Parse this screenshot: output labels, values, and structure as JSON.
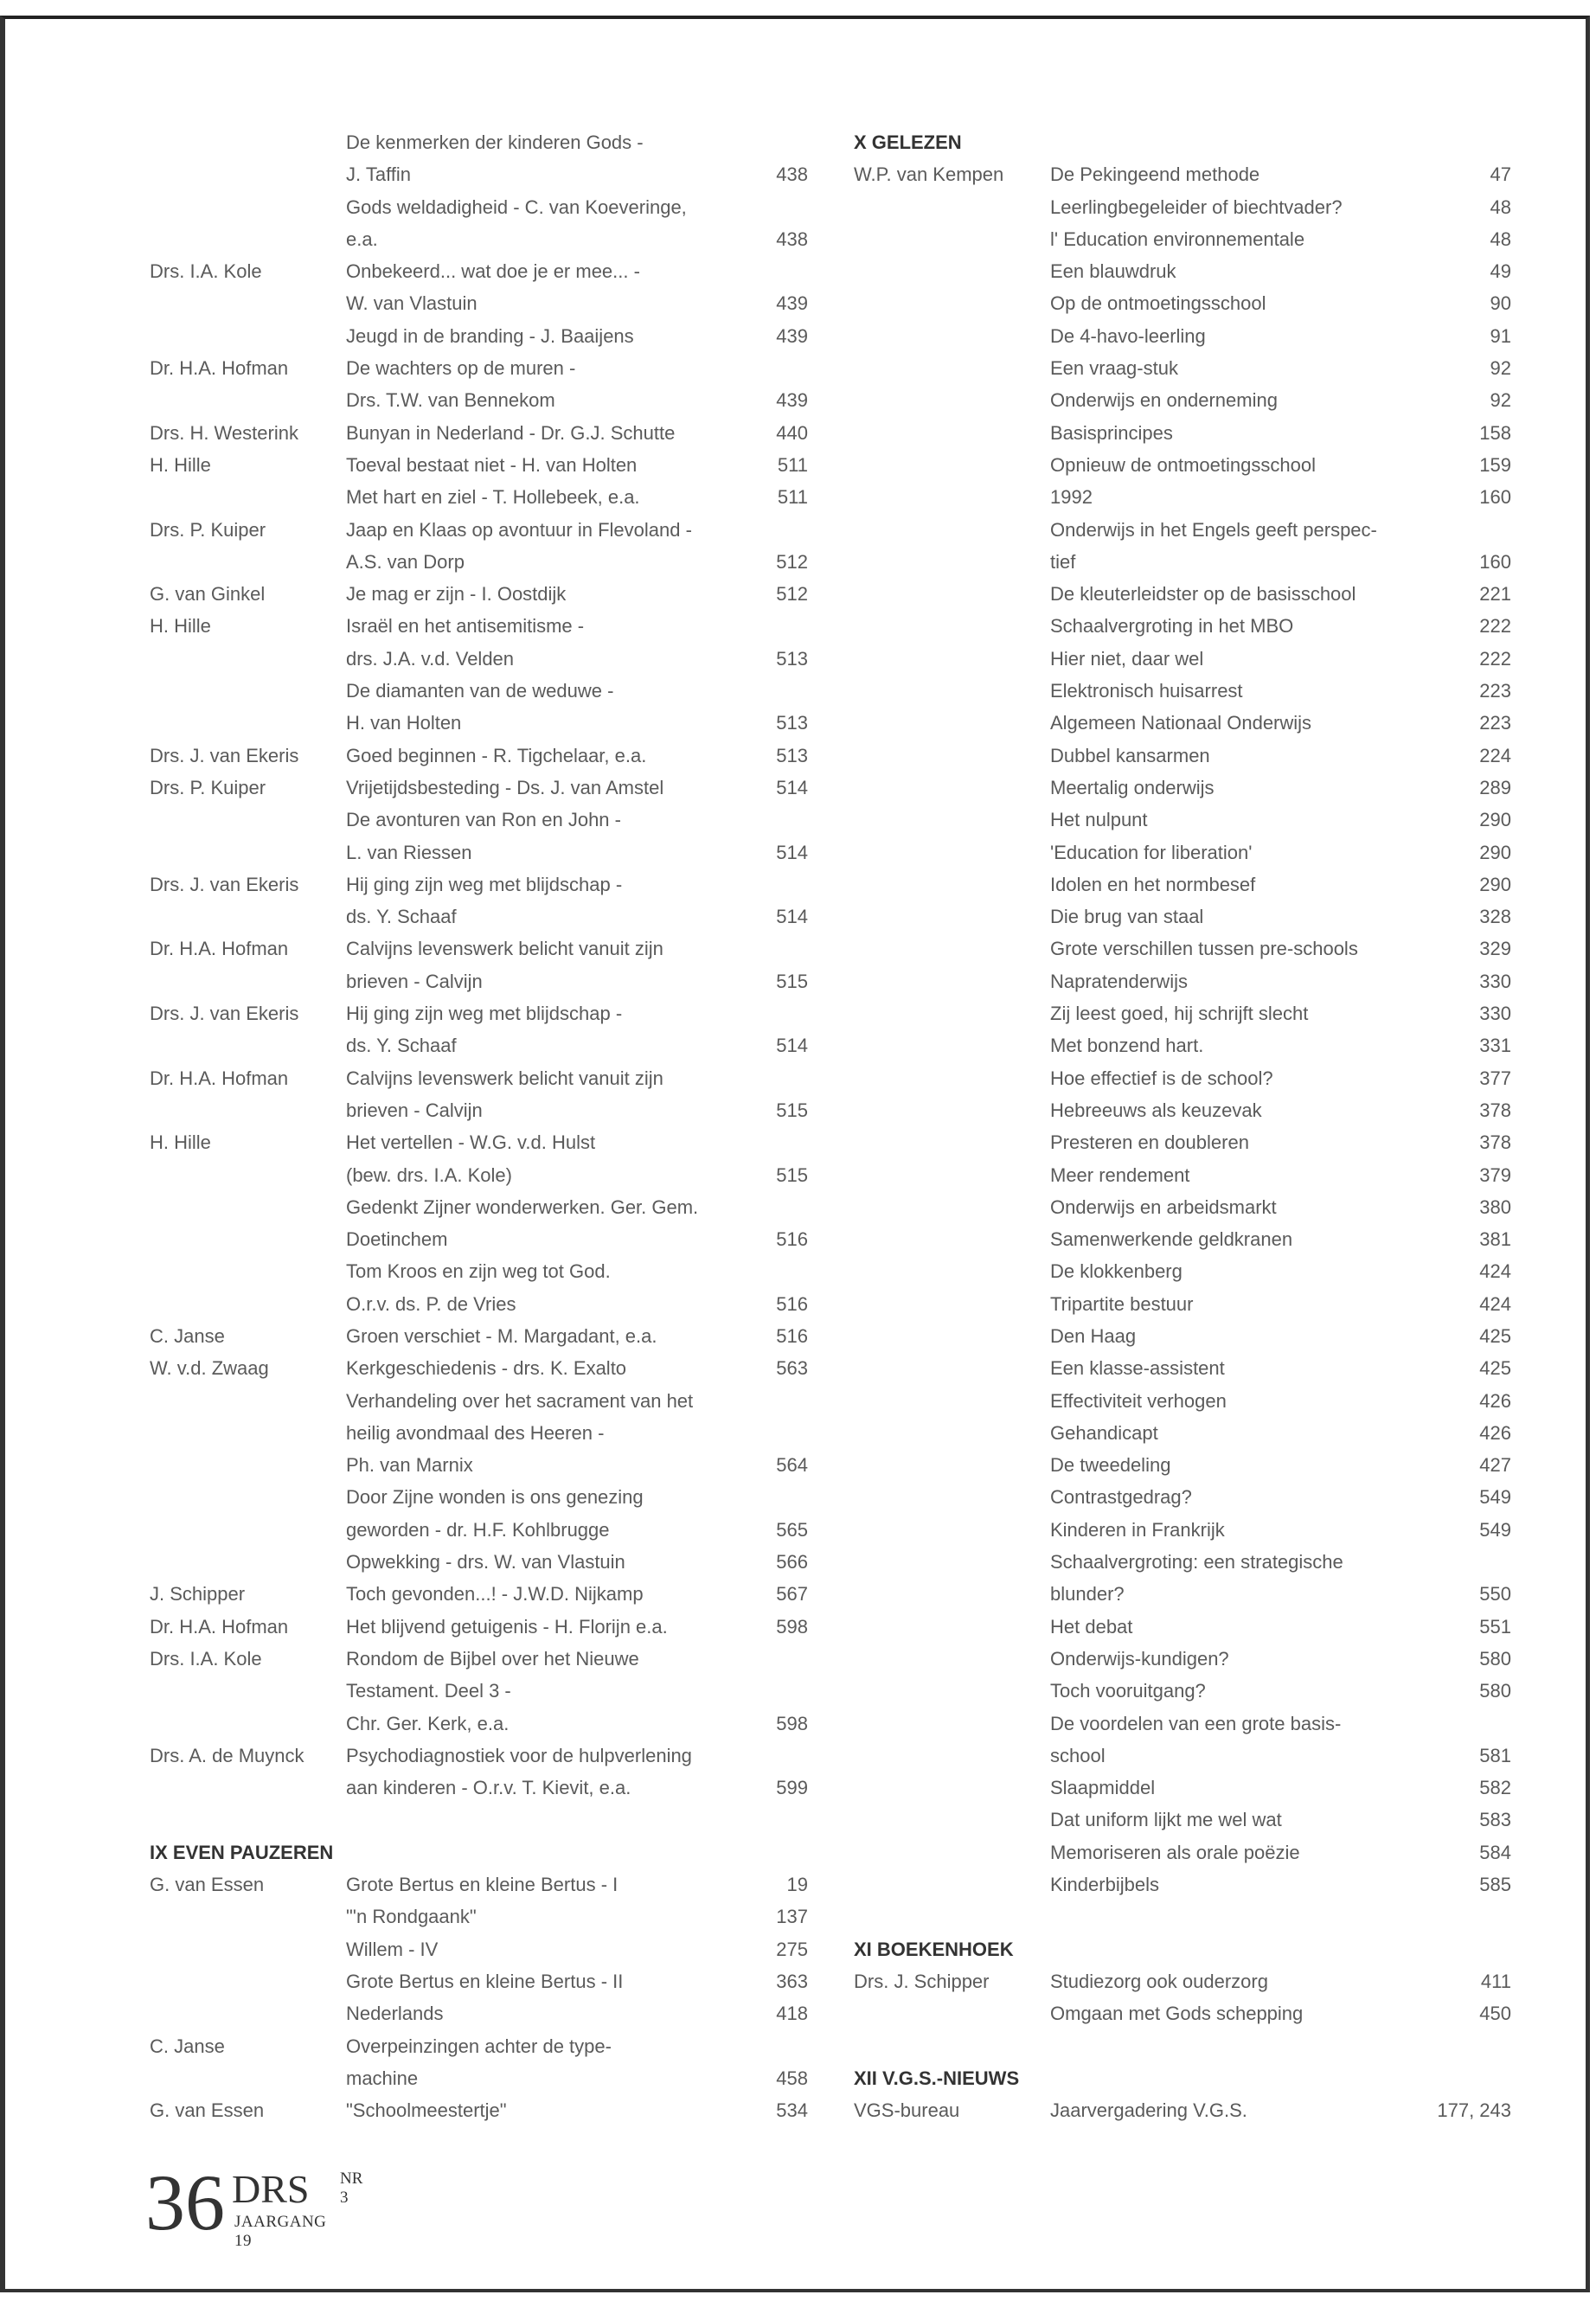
{
  "left_column": [
    {
      "t": "De kenmerken der kinderen Gods -"
    },
    {
      "t": "J. Taffin",
      "p": "438"
    },
    {
      "t": "Gods weldadigheid - C. van Koeveringe,"
    },
    {
      "t": "e.a.",
      "p": "438"
    },
    {
      "a": "Drs. I.A. Kole",
      "t": "Onbekeerd... wat doe je er mee... -"
    },
    {
      "t": "W. van Vlastuin",
      "p": "439"
    },
    {
      "t": "Jeugd in de branding - J. Baaijens",
      "p": "439"
    },
    {
      "a": "Dr. H.A. Hofman",
      "t": "De wachters op de muren -"
    },
    {
      "t": "Drs. T.W. van Bennekom",
      "p": "439"
    },
    {
      "a": "Drs. H. Westerink",
      "t": "Bunyan in Nederland - Dr. G.J. Schutte",
      "p": "440"
    },
    {
      "a": "H. Hille",
      "t": "Toeval bestaat niet - H. van Holten",
      "p": "511"
    },
    {
      "t": "Met hart en ziel - T. Hollebeek, e.a.",
      "p": "511"
    },
    {
      "a": "Drs. P. Kuiper",
      "t": "Jaap en Klaas op avontuur in Flevoland -"
    },
    {
      "t": "A.S. van Dorp",
      "p": "512"
    },
    {
      "a": "G. van Ginkel",
      "t": "Je mag er zijn - I. Oostdijk",
      "p": "512"
    },
    {
      "a": "H. Hille",
      "t": "Israël en het antisemitisme -"
    },
    {
      "t": "drs. J.A. v.d. Velden",
      "p": "513"
    },
    {
      "t": "De diamanten van de weduwe -"
    },
    {
      "t": "H. van Holten",
      "p": "513"
    },
    {
      "a": "Drs. J. van Ekeris",
      "t": "Goed beginnen - R. Tigchelaar, e.a.",
      "p": "513"
    },
    {
      "a": "Drs. P. Kuiper",
      "t": "Vrijetijdsbesteding - Ds. J. van Amstel",
      "p": "514"
    },
    {
      "t": "De avonturen van Ron en John -"
    },
    {
      "t": "L. van Riessen",
      "p": "514"
    },
    {
      "a": "Drs. J. van Ekeris",
      "t": "Hij ging zijn weg met blijdschap -"
    },
    {
      "t": "ds. Y. Schaaf",
      "p": "514"
    },
    {
      "a": "Dr. H.A. Hofman",
      "t": "Calvijns levenswerk belicht vanuit zijn"
    },
    {
      "t": "brieven - Calvijn",
      "p": "515"
    },
    {
      "a": "Drs. J. van Ekeris",
      "t": "Hij ging zijn weg met blijdschap -"
    },
    {
      "t": "ds. Y. Schaaf",
      "p": "514"
    },
    {
      "a": "Dr. H.A. Hofman",
      "t": "Calvijns levenswerk belicht vanuit zijn"
    },
    {
      "t": "brieven - Calvijn",
      "p": "515"
    },
    {
      "a": "H. Hille",
      "t": "Het vertellen - W.G. v.d. Hulst"
    },
    {
      "t": "(bew. drs. I.A. Kole)",
      "p": "515"
    },
    {
      "t": "Gedenkt Zijner wonderwerken. Ger. Gem."
    },
    {
      "t": "Doetinchem",
      "p": "516"
    },
    {
      "t": "Tom Kroos en zijn weg tot God."
    },
    {
      "t": "O.r.v. ds. P. de Vries",
      "p": "516"
    },
    {
      "a": "C. Janse",
      "t": "Groen verschiet - M. Margadant, e.a.",
      "p": "516"
    },
    {
      "a": "W. v.d. Zwaag",
      "t": "Kerkgeschiedenis - drs. K. Exalto",
      "p": "563"
    },
    {
      "t": "Verhandeling over het sacrament van het"
    },
    {
      "t": "heilig avondmaal des Heeren -"
    },
    {
      "t": "Ph. van Marnix",
      "p": "564"
    },
    {
      "t": "Door Zijne wonden is ons genezing"
    },
    {
      "t": "geworden - dr. H.F. Kohlbrugge",
      "p": "565"
    },
    {
      "t": "Opwekking - drs. W. van Vlastuin",
      "p": "566"
    },
    {
      "a": "J. Schipper",
      "t": "Toch gevonden...! - J.W.D. Nijkamp",
      "p": "567"
    },
    {
      "a": "Dr. H.A. Hofman",
      "t": "Het blijvend getuigenis - H. Florijn e.a.",
      "p": "598"
    },
    {
      "a": "Drs. I.A. Kole",
      "t": "Rondom de Bijbel over het Nieuwe"
    },
    {
      "t": "Testament. Deel 3 -"
    },
    {
      "t": "Chr. Ger. Kerk, e.a.",
      "p": "598"
    },
    {
      "a": "Drs. A. de Muynck",
      "t": "Psychodiagnostiek voor de hulpverlening"
    },
    {
      "t": "aan kinderen - O.r.v. T. Kievit, e.a.",
      "p": "599"
    },
    {},
    {
      "h": "IX  EVEN PAUZEREN"
    },
    {
      "a": "G. van Essen",
      "t": "Grote Bertus en kleine Bertus - I",
      "p": "19"
    },
    {
      "t": "\"'n Rondgaank\"",
      "p": "137"
    },
    {
      "t": "Willem - IV",
      "p": "275"
    },
    {
      "t": "Grote Bertus en kleine Bertus - II",
      "p": "363"
    },
    {
      "t": "Nederlands",
      "p": "418"
    },
    {
      "a": "C. Janse",
      "t": "Overpeinzingen achter de type-"
    },
    {
      "t": "machine",
      "p": "458"
    },
    {
      "a": "G. van Essen",
      "t": "\"Schoolmeestertje\"",
      "p": "534"
    }
  ],
  "right_column": [
    {
      "h": "X GELEZEN"
    },
    {
      "a": "W.P. van Kempen",
      "t": "De Pekingeend methode",
      "p": "47"
    },
    {
      "t": "Leerlingbegeleider of biechtvader?",
      "p": "48"
    },
    {
      "t": "l' Education environnementale",
      "p": "48"
    },
    {
      "t": "Een blauwdruk",
      "p": "49"
    },
    {
      "t": "Op de ontmoetingsschool",
      "p": "90"
    },
    {
      "t": "De 4-havo-leerling",
      "p": "91"
    },
    {
      "t": "Een vraag-stuk",
      "p": "92"
    },
    {
      "t": "Onderwijs en onderneming",
      "p": "92"
    },
    {
      "t": "Basisprincipes",
      "p": "158"
    },
    {
      "t": "Opnieuw de ontmoetingsschool",
      "p": "159"
    },
    {
      "t": "1992",
      "p": "160"
    },
    {
      "t": "Onderwijs in het Engels geeft perspec-"
    },
    {
      "t": "tief",
      "p": "160"
    },
    {
      "t": "De kleuterleidster op de basisschool",
      "p": "221"
    },
    {
      "t": "Schaalvergroting in het MBO",
      "p": "222"
    },
    {
      "t": "Hier niet, daar wel",
      "p": "222"
    },
    {
      "t": "Elektronisch huisarrest",
      "p": "223"
    },
    {
      "t": "Algemeen Nationaal Onderwijs",
      "p": "223"
    },
    {
      "t": "Dubbel kansarmen",
      "p": "224"
    },
    {
      "t": "Meertalig onderwijs",
      "p": "289"
    },
    {
      "t": "Het nulpunt",
      "p": "290"
    },
    {
      "t": "'Education for liberation'",
      "p": "290"
    },
    {
      "t": "Idolen en het normbesef",
      "p": "290"
    },
    {
      "t": "Die brug van staal",
      "p": "328"
    },
    {
      "t": "Grote verschillen tussen pre-schools",
      "p": "329"
    },
    {
      "t": "Napratenderwijs",
      "p": "330"
    },
    {
      "t": "Zij leest goed, hij schrijft slecht",
      "p": "330"
    },
    {
      "t": "Met bonzend hart.",
      "p": "331"
    },
    {
      "t": "Hoe effectief is de school?",
      "p": "377"
    },
    {
      "t": "Hebreeuws als keuzevak",
      "p": "378"
    },
    {
      "t": "Presteren en doubleren",
      "p": "378"
    },
    {
      "t": "Meer rendement",
      "p": "379"
    },
    {
      "t": "Onderwijs en arbeidsmarkt",
      "p": "380"
    },
    {
      "t": "Samenwerkende geldkranen",
      "p": "381"
    },
    {
      "t": "De klokkenberg",
      "p": "424"
    },
    {
      "t": "Tripartite bestuur",
      "p": "424"
    },
    {
      "t": "Den Haag",
      "p": "425"
    },
    {
      "t": "Een klasse-assistent",
      "p": "425"
    },
    {
      "t": "Effectiviteit verhogen",
      "p": "426"
    },
    {
      "t": "Gehandicapt",
      "p": "426"
    },
    {
      "t": "De tweedeling",
      "p": "427"
    },
    {
      "t": "Contrastgedrag?",
      "p": "549"
    },
    {
      "t": "Kinderen in Frankrijk",
      "p": "549"
    },
    {
      "t": "Schaalvergroting: een strategische"
    },
    {
      "t": "blunder?",
      "p": "550"
    },
    {
      "t": "Het debat",
      "p": "551"
    },
    {
      "t": "Onderwijs-kundigen?",
      "p": "580"
    },
    {
      "t": "Toch vooruitgang?",
      "p": "580"
    },
    {
      "t": "De voordelen van een grote basis-"
    },
    {
      "t": "school",
      "p": "581"
    },
    {
      "t": "Slaapmiddel",
      "p": "582"
    },
    {
      "t": "Dat uniform lijkt me wel wat",
      "p": "583"
    },
    {
      "t": "Memoriseren als orale poëzie",
      "p": "584"
    },
    {
      "t": "Kinderbijbels",
      "p": "585"
    },
    {},
    {
      "h": "XI  BOEKENHOEK"
    },
    {
      "a": "Drs. J. Schipper",
      "t": "Studiezorg ook ouderzorg",
      "p": "411"
    },
    {
      "t": "Omgaan met Gods schepping",
      "p": "450"
    },
    {},
    {
      "h": "XII  V.G.S.-NIEUWS"
    },
    {
      "a": "VGS-bureau",
      "t": "Jaarvergadering V.G.S.",
      "p": "177, 243"
    }
  ],
  "footer": {
    "page_number": "36",
    "magazine": "DRS",
    "issue": "NR 3",
    "volume": "JAARGANG 19"
  }
}
